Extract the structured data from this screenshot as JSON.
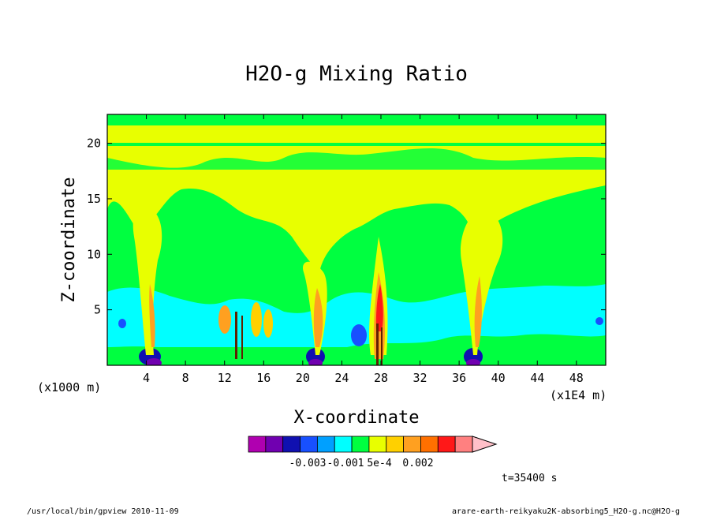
{
  "chart_data": {
    "type": "heatmap",
    "title": "H2O-g Mixing Ratio",
    "xlabel": "X-coordinate",
    "ylabel": "Z-coordinate",
    "x_unit_left": "(x1000 m)",
    "x_unit_right": "(x1E4 m)",
    "x_ticks": [
      "4",
      "8",
      "12",
      "16",
      "20",
      "24",
      "28",
      "32",
      "36",
      "40",
      "44",
      "48"
    ],
    "y_ticks": [
      "5",
      "10",
      "15",
      "20"
    ],
    "xlim": [
      0,
      51
    ],
    "ylim": [
      0,
      22.6
    ],
    "colorbar_labels": [
      "-0.003",
      "-0.001",
      "5e-4",
      "0.002"
    ],
    "colorbar_colors": [
      "#b000b0",
      "#7000b0",
      "#1010b0",
      "#1850ff",
      "#00a0ff",
      "#00ffff",
      "#00ff40",
      "#e8ff00",
      "#ffd000",
      "#ffa020",
      "#ff7000",
      "#ff1818",
      "#ff8080",
      "#ffc0c8"
    ],
    "time_label": "t=35400 s"
  },
  "footer": {
    "left": "/usr/local/bin/gpview  2010-11-09",
    "right": "arare-earth-reikyaku2K-absorbing5_H2O-g.nc@H2O-g"
  }
}
